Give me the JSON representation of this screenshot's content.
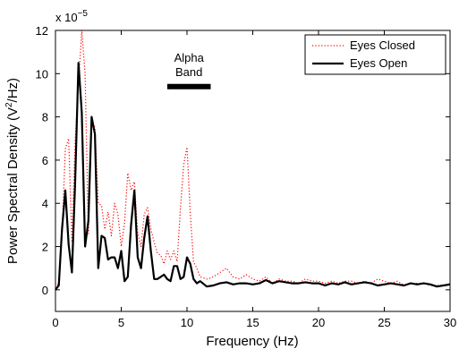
{
  "chart_data": {
    "type": "line",
    "xlabel": "Frequency (Hz)",
    "ylabel": "Power Spectral Density (V",
    "ylabel_sup": "2",
    "ylabel_tail": "/Hz)",
    "y_multiplier": "x 10",
    "y_multiplier_exp": "−5",
    "xlim": [
      0,
      30
    ],
    "ylim": [
      -1,
      12
    ],
    "xticks": [
      "0",
      "5",
      "10",
      "15",
      "20",
      "25",
      "30"
    ],
    "yticks": [
      "0",
      "2",
      "4",
      "6",
      "8",
      "10",
      "12"
    ],
    "grid": false,
    "legend_position": "top-right",
    "annotation": {
      "line1": "Alpha",
      "line2": "Band",
      "band_start": 8.5,
      "band_end": 11.8,
      "band_y": 9.4
    },
    "series": [
      {
        "name": "Eyes Closed",
        "color": "#ff0000",
        "style": "dotted",
        "x": [
          0,
          0.25,
          0.5,
          0.75,
          1,
          1.25,
          1.5,
          1.75,
          2,
          2.25,
          2.5,
          2.75,
          3,
          3.25,
          3.5,
          3.75,
          4,
          4.25,
          4.5,
          4.75,
          5,
          5.25,
          5.5,
          5.75,
          6,
          6.25,
          6.5,
          6.75,
          7,
          7.25,
          7.5,
          7.75,
          8,
          8.25,
          8.5,
          8.75,
          9,
          9.25,
          9.5,
          9.75,
          10,
          10.25,
          10.5,
          10.75,
          11,
          11.5,
          12,
          12.5,
          13,
          13.5,
          14,
          14.5,
          15,
          15.5,
          16,
          16.5,
          17,
          17.5,
          18,
          18.5,
          19,
          19.5,
          20,
          20.5,
          21,
          21.5,
          22,
          22.5,
          23,
          23.5,
          24,
          24.5,
          25,
          25.5,
          26,
          26.5,
          27,
          27.5,
          28,
          28.5,
          29,
          29.5,
          30
        ],
        "y": [
          0.1,
          0.3,
          2.5,
          6.5,
          7.0,
          2.2,
          6.9,
          9.5,
          12.0,
          10.0,
          2.6,
          7.8,
          7.5,
          4.0,
          3.9,
          2.8,
          3.6,
          2.5,
          4.0,
          3.5,
          2.0,
          3.1,
          5.4,
          4.6,
          5.0,
          2.6,
          2.0,
          3.5,
          3.8,
          2.8,
          2.2,
          1.7,
          1.6,
          1.2,
          1.8,
          1.4,
          1.8,
          1.3,
          3.8,
          5.8,
          6.6,
          3.5,
          1.3,
          1.0,
          0.6,
          0.5,
          0.6,
          0.8,
          1.0,
          0.6,
          0.5,
          0.7,
          0.5,
          0.4,
          0.6,
          0.3,
          0.5,
          0.4,
          0.4,
          0.3,
          0.5,
          0.4,
          0.4,
          0.3,
          0.4,
          0.3,
          0.4,
          0.4,
          0.3,
          0.4,
          0.3,
          0.5,
          0.4,
          0.3,
          0.4,
          0.2,
          0.3,
          0.3,
          0.3,
          0.2,
          0.2,
          0.2,
          0.3
        ]
      },
      {
        "name": "Eyes Open",
        "color": "#000000",
        "style": "solid",
        "x": [
          0,
          0.25,
          0.5,
          0.75,
          1,
          1.25,
          1.5,
          1.75,
          2,
          2.25,
          2.5,
          2.75,
          3,
          3.25,
          3.5,
          3.75,
          4,
          4.25,
          4.5,
          4.75,
          5,
          5.25,
          5.5,
          5.75,
          6,
          6.25,
          6.5,
          6.75,
          7,
          7.25,
          7.5,
          7.75,
          8,
          8.25,
          8.5,
          8.75,
          9,
          9.25,
          9.5,
          9.75,
          10,
          10.25,
          10.5,
          10.75,
          11,
          11.5,
          12,
          12.5,
          13,
          13.5,
          14,
          14.5,
          15,
          15.5,
          16,
          16.5,
          17,
          17.5,
          18,
          18.5,
          19,
          19.5,
          20,
          20.5,
          21,
          21.5,
          22,
          22.5,
          23,
          23.5,
          24,
          24.5,
          25,
          25.5,
          26,
          26.5,
          27,
          27.5,
          28,
          28.5,
          29,
          29.5,
          30
        ],
        "y": [
          0.0,
          0.2,
          2.8,
          4.6,
          2.1,
          0.8,
          5.0,
          10.5,
          8.2,
          2.0,
          3.2,
          8.0,
          7.2,
          1.0,
          2.5,
          2.4,
          1.4,
          1.5,
          1.5,
          1.0,
          1.8,
          0.4,
          0.6,
          3.0,
          4.6,
          1.5,
          1.0,
          2.4,
          3.4,
          1.8,
          0.5,
          0.5,
          0.6,
          0.7,
          0.5,
          0.4,
          1.1,
          1.1,
          0.5,
          0.6,
          1.5,
          1.2,
          0.5,
          0.3,
          0.4,
          0.15,
          0.2,
          0.3,
          0.35,
          0.25,
          0.3,
          0.3,
          0.25,
          0.3,
          0.45,
          0.3,
          0.4,
          0.35,
          0.3,
          0.3,
          0.35,
          0.3,
          0.3,
          0.2,
          0.3,
          0.25,
          0.35,
          0.25,
          0.3,
          0.35,
          0.3,
          0.2,
          0.25,
          0.3,
          0.25,
          0.2,
          0.3,
          0.25,
          0.3,
          0.25,
          0.15,
          0.2,
          0.25
        ]
      }
    ]
  }
}
